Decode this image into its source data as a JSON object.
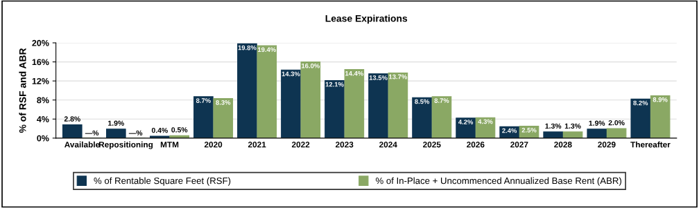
{
  "chart_data": {
    "type": "bar",
    "title": "Lease Expirations",
    "ylabel": "% of RSF and ABR",
    "categories": [
      "Available",
      "Repositioning",
      "MTM",
      "2020",
      "2021",
      "2022",
      "2023",
      "2024",
      "2025",
      "2026",
      "2027",
      "2028",
      "2029",
      "Thereafter"
    ],
    "series": [
      {
        "name": "% of Rentable Square Feet (RSF)",
        "color": "#0e3451",
        "values": [
          2.8,
          1.9,
          0.4,
          8.7,
          19.8,
          14.3,
          12.1,
          13.5,
          8.5,
          4.2,
          2.4,
          1.3,
          1.9,
          8.2
        ],
        "value_labels": [
          "2.8%",
          "1.9%",
          "0.4%",
          "8.7%",
          "19.8%",
          "14.3%",
          "12.1%",
          "13.5%",
          "8.5%",
          "4.2%",
          "2.4%",
          "1.3%",
          "1.9%",
          "8.2%"
        ]
      },
      {
        "name": "% of In-Place + Uncommenced Annualized Base Rent (ABR)",
        "color": "#8aa864",
        "values": [
          0,
          0,
          0.5,
          8.3,
          19.4,
          16.0,
          14.4,
          13.7,
          8.7,
          4.3,
          2.5,
          1.3,
          2.0,
          8.9
        ],
        "value_labels": [
          "—%",
          "—%",
          "0.5%",
          "8.3%",
          "19.4%",
          "16.0%",
          "14.4%",
          "13.7%",
          "8.7%",
          "4.3%",
          "2.5%",
          "1.3%",
          "2.0%",
          "8.9%"
        ]
      }
    ],
    "ylim": [
      0,
      20
    ],
    "yticks": [
      {
        "value": 0,
        "label": "0%"
      },
      {
        "value": 4,
        "label": "4%"
      },
      {
        "value": 8,
        "label": "8%"
      },
      {
        "value": 12,
        "label": "12%"
      },
      {
        "value": 16,
        "label": "16%"
      },
      {
        "value": 20,
        "label": "20%"
      }
    ],
    "grid": "y",
    "legend": "bottom"
  }
}
